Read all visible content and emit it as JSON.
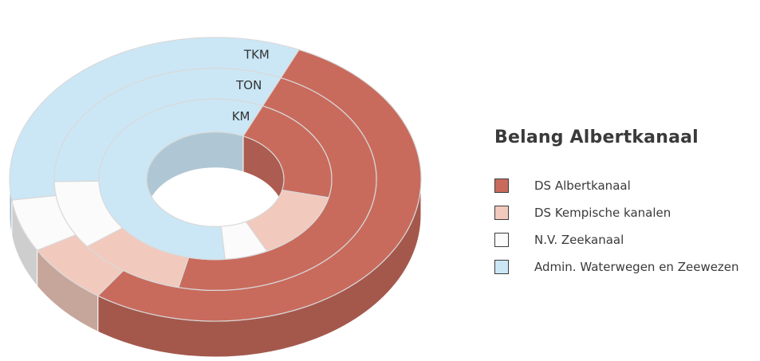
{
  "chart_data": {
    "type": "pie",
    "variant": "nested-donut-3d",
    "title": "Belang Albertkanaal",
    "categories": [
      "DS Albertkanaal",
      "DS Kempische kanalen",
      "N.V. Zeekanaal",
      "Admin. Waterwegen en Zeewezen"
    ],
    "series": [
      {
        "name": "TKM",
        "values": [
          0.53,
          0.07,
          0.06,
          0.34
        ]
      },
      {
        "name": "TON",
        "values": [
          0.47,
          0.11,
          0.1,
          0.32
        ]
      },
      {
        "name": "KM",
        "values": [
          0.22,
          0.14,
          0.06,
          0.58
        ]
      }
    ],
    "colors": [
      "#c86b5d",
      "#f2c9bd",
      "#fbfbfb",
      "#cbe7f6"
    ],
    "legend_position": "right"
  }
}
